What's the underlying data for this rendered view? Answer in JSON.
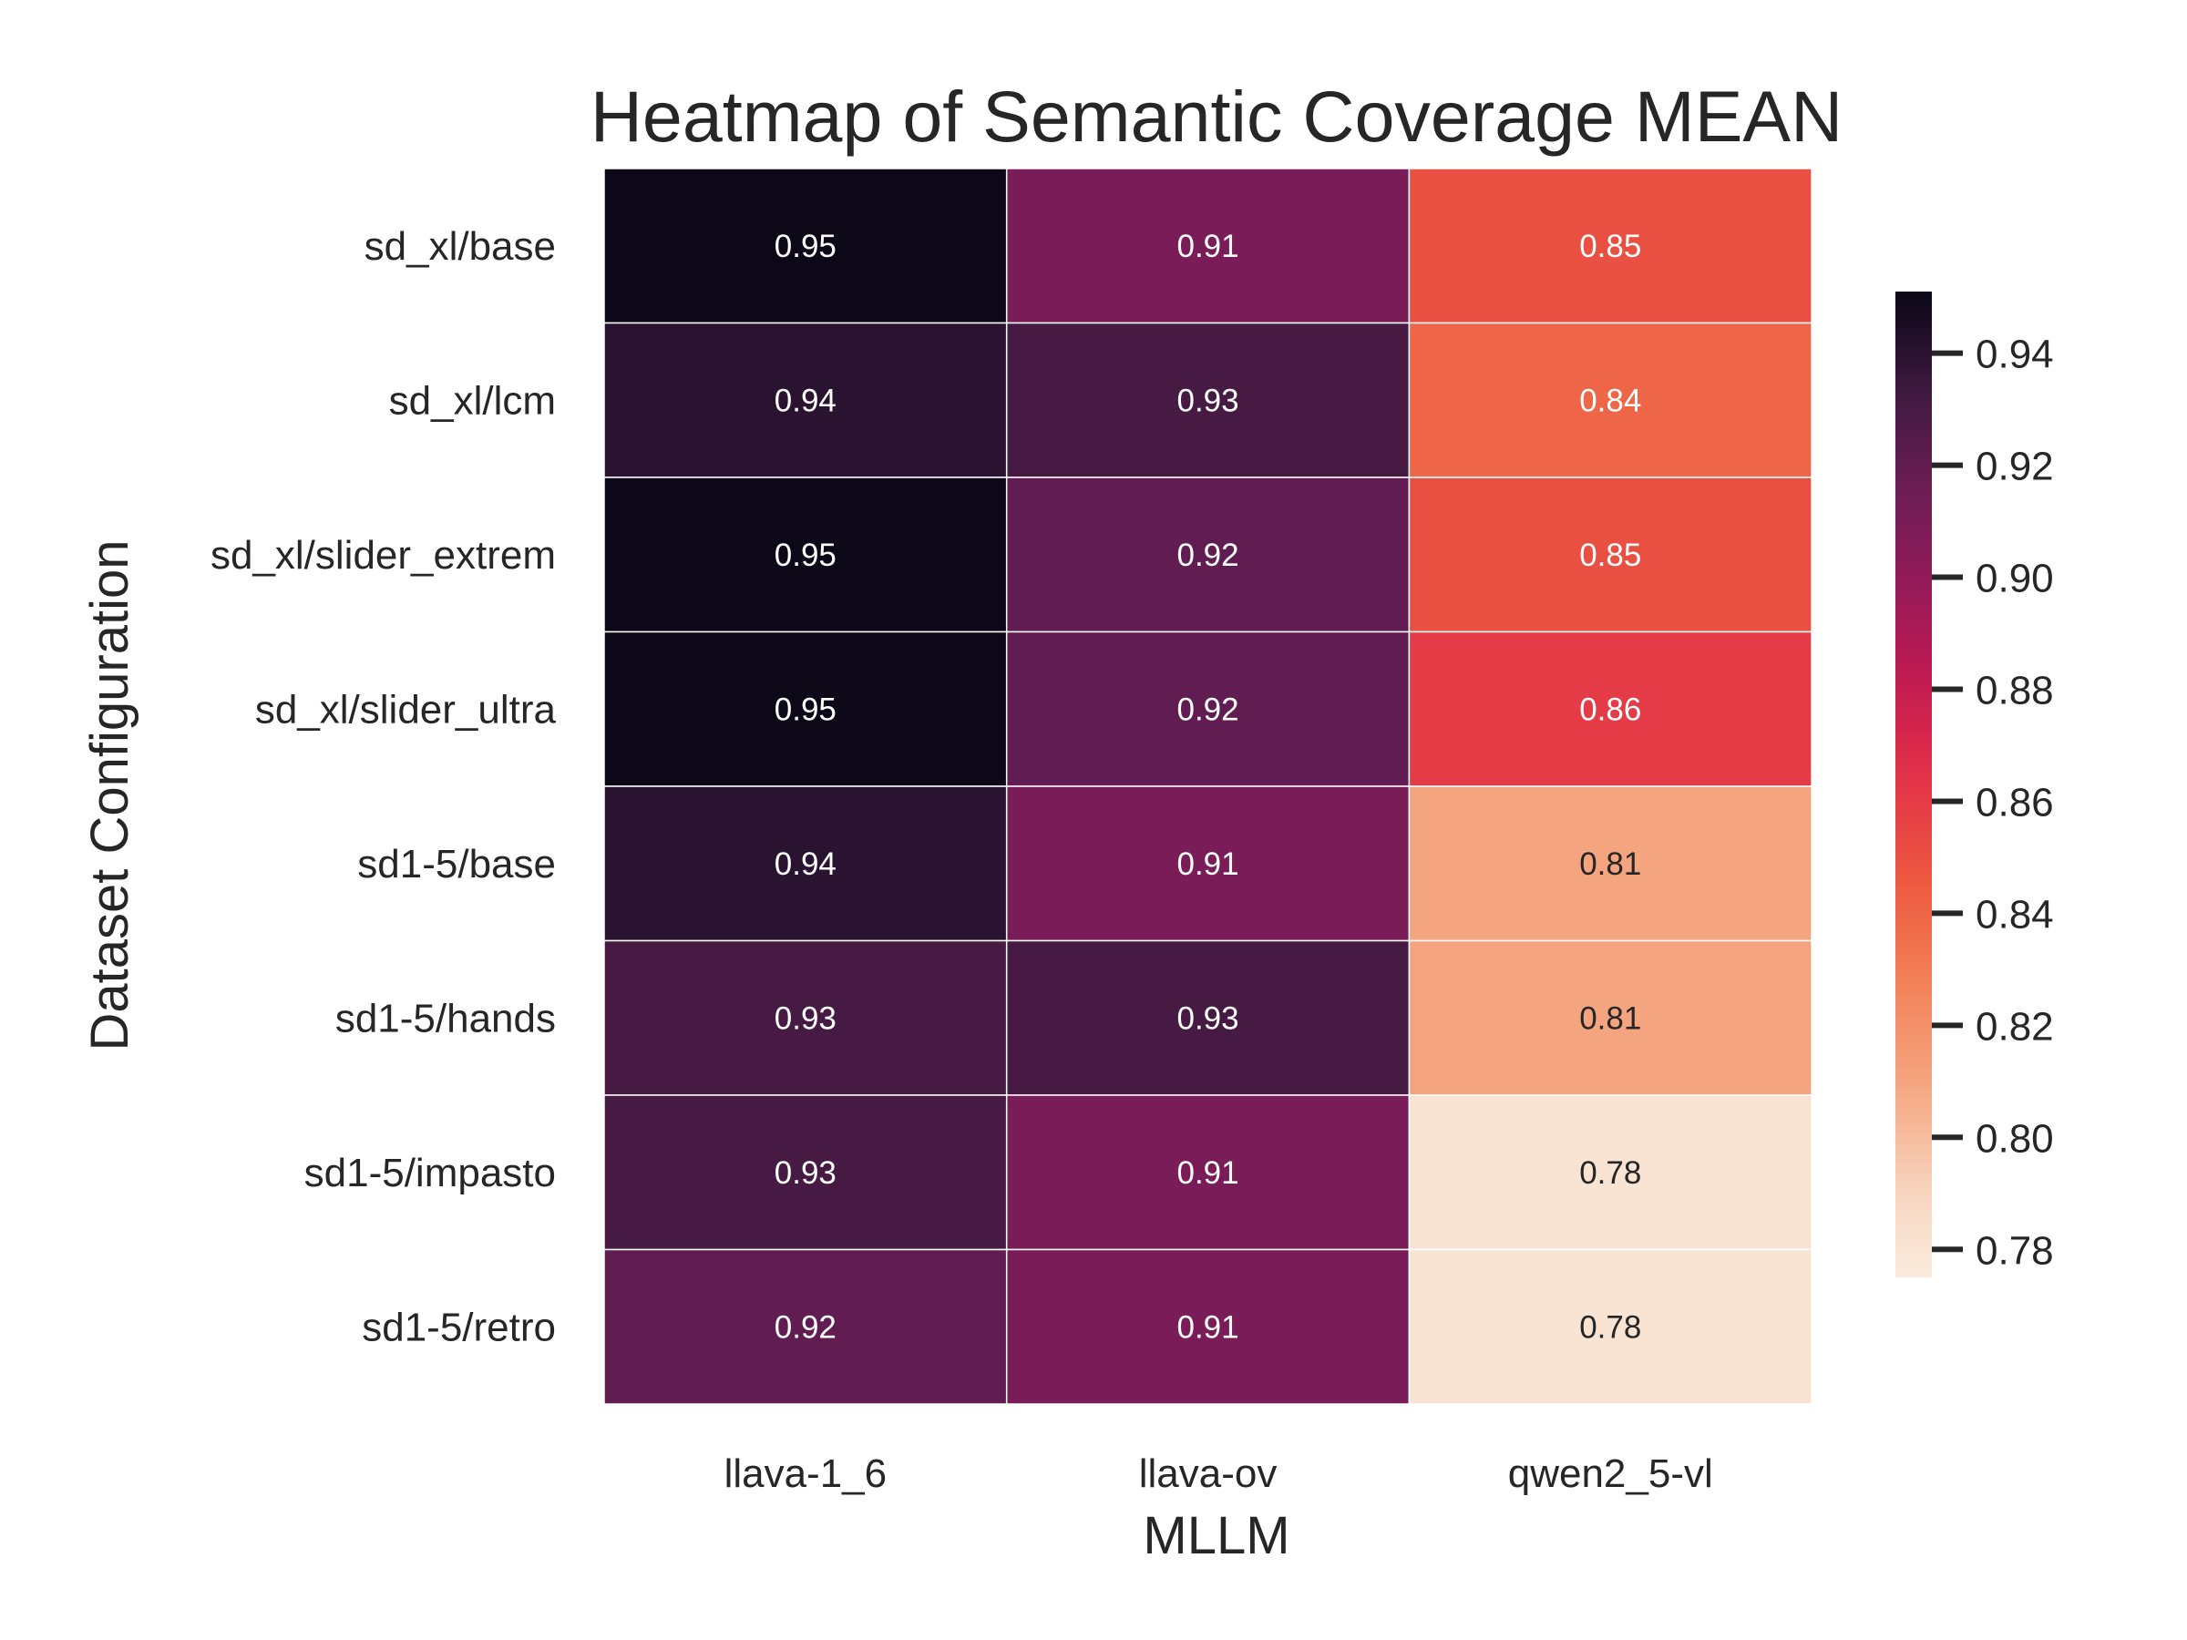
{
  "chart_data": {
    "type": "heatmap",
    "title": "Heatmap of Semantic Coverage MEAN",
    "xlabel": "MLLM",
    "ylabel": "Dataset Configuration",
    "x_categories": [
      "llava-1_6",
      "llava-ov",
      "qwen2_5-vl"
    ],
    "y_categories": [
      "sd_xl/base",
      "sd_xl/lcm",
      "sd_xl/slider_extrem",
      "sd_xl/slider_ultra",
      "sd1-5/base",
      "sd1-5/hands",
      "sd1-5/impasto",
      "sd1-5/retro"
    ],
    "values": [
      [
        0.95,
        0.91,
        0.85
      ],
      [
        0.94,
        0.93,
        0.84
      ],
      [
        0.95,
        0.92,
        0.85
      ],
      [
        0.95,
        0.92,
        0.86
      ],
      [
        0.94,
        0.91,
        0.81
      ],
      [
        0.93,
        0.93,
        0.81
      ],
      [
        0.93,
        0.91,
        0.78
      ],
      [
        0.92,
        0.91,
        0.78
      ]
    ],
    "colorbar": {
      "ticks": [
        "0.78",
        "0.80",
        "0.82",
        "0.84",
        "0.86",
        "0.88",
        "0.90",
        "0.92",
        "0.94"
      ],
      "range": [
        0.775,
        0.951
      ]
    },
    "colormap": "rocket_r",
    "grid": false,
    "legend": "colorbar-right"
  }
}
